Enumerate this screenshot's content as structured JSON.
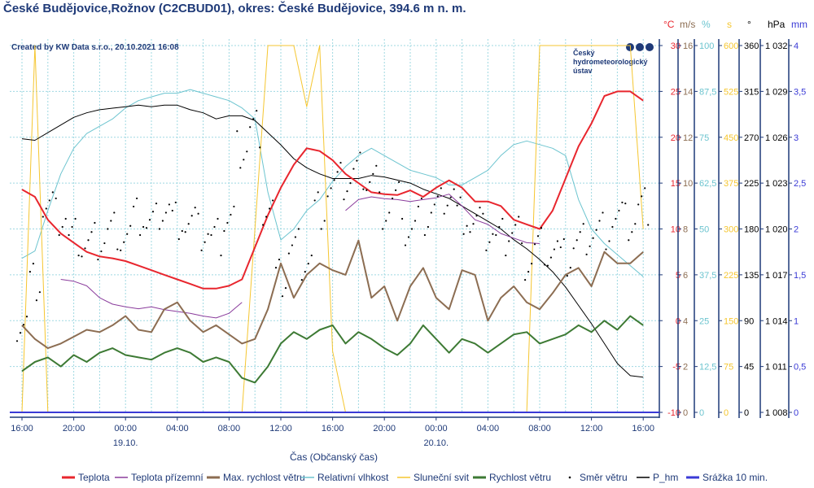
{
  "title": "České Budějovice,Rožnov (C2CBUD01), okres: České Budějovice, 394.6 m n. m.",
  "credit": "Created by KW Data s.r.o., 20.10.2021 16:08",
  "logo": {
    "lines": [
      "Český",
      "hydrometeorologický",
      "ústav"
    ]
  },
  "chart_data": {
    "type": "line",
    "title": "České Budějovice,Rožnov (C2CBUD01), okres: České Budějovice, 394.6 m n. m.",
    "xlabel": "Čas (Občanský čas)",
    "x_tick_labels": [
      "16:00",
      "20:00",
      "00:00",
      "04:00",
      "08:00",
      "12:00",
      "16:00",
      "20:00",
      "00:00",
      "04:00",
      "08:00",
      "12:00",
      "16:00"
    ],
    "date_labels": [
      {
        "label": "19.10.",
        "tick": 2
      },
      {
        "label": "20.10.",
        "tick": 8
      }
    ],
    "x_hours_from_start": "0..48 hourly, start 18.10. 16:00",
    "grid": true,
    "legend_position": "bottom",
    "axes": [
      {
        "id": "temp",
        "unit": "°C",
        "color": "#e8262e",
        "range": [
          -10,
          30
        ],
        "ticks": [
          "-10",
          "-5",
          "0",
          "5",
          "10",
          "15",
          "20",
          "25",
          "30"
        ]
      },
      {
        "id": "wind",
        "unit": "m/s",
        "color": "#8c6d52",
        "range": [
          0,
          16
        ],
        "ticks": [
          "0",
          "2",
          "4",
          "6",
          "8",
          "10",
          "12",
          "14",
          "16"
        ]
      },
      {
        "id": "hum",
        "unit": "%",
        "color": "#6cc4cf",
        "range": [
          0,
          100
        ],
        "ticks": [
          "0",
          "12,5",
          "25",
          "37,5",
          "50",
          "62,5",
          "75",
          "87,5",
          "100"
        ]
      },
      {
        "id": "sun",
        "unit": "s",
        "color": "#f5c630",
        "range": [
          0,
          600
        ],
        "ticks": [
          "0",
          "75",
          "150",
          "225",
          "300",
          "375",
          "450",
          "525",
          "600"
        ]
      },
      {
        "id": "dir",
        "unit": "°",
        "color": "#000000",
        "range": [
          0,
          360
        ],
        "ticks": [
          "0",
          "45",
          "90",
          "135",
          "180",
          "225",
          "270",
          "315",
          "360"
        ]
      },
      {
        "id": "press",
        "unit": "hPa",
        "color": "#000000",
        "range": [
          1008,
          1032
        ],
        "ticks": [
          "1 008",
          "1 011",
          "1 014",
          "1 017",
          "1 020",
          "1 023",
          "1 026",
          "1 029",
          "1 032"
        ]
      },
      {
        "id": "rain",
        "unit": "mm",
        "color": "#3a3ad6",
        "range": [
          0,
          4
        ],
        "ticks": [
          "0",
          "0,5",
          "1",
          "1,5",
          "2",
          "2,5",
          "3",
          "3,5",
          "4"
        ]
      }
    ],
    "series": [
      {
        "name": "Teplota",
        "axis": "temp",
        "color": "#e8262e",
        "style": "line",
        "width": 2,
        "values": [
          14.3,
          13.5,
          11,
          9.5,
          8.5,
          7.5,
          7,
          6.8,
          6.5,
          6,
          5.5,
          5,
          4.5,
          4,
          3.5,
          3.5,
          3.8,
          4.5,
          8,
          11.5,
          14.5,
          17,
          18.8,
          18.5,
          17.5,
          16,
          15,
          14,
          13.8,
          13.7,
          14.2,
          13.5,
          14.5,
          15.3,
          14.5,
          13,
          13,
          12.5,
          11,
          10.5,
          10,
          12,
          15.5,
          19,
          21.5,
          24.5,
          25,
          25,
          24
        ]
      },
      {
        "name": "Teplota přízemní",
        "axis": "temp",
        "color": "#8a3c9c",
        "style": "line",
        "width": 1,
        "values": [
          null,
          null,
          null,
          4.5,
          4.3,
          3.8,
          2.5,
          1.8,
          1.5,
          1.3,
          1.5,
          1.2,
          1.0,
          0.8,
          0.5,
          0.3,
          0.8,
          2.0,
          null,
          null,
          null,
          null,
          null,
          null,
          null,
          12,
          13.2,
          13.5,
          13.3,
          13.2,
          13,
          13.2,
          13.4,
          13.8,
          12.5,
          11,
          10.5,
          9.5,
          9,
          8.5,
          8.4,
          null,
          null,
          null,
          null,
          null,
          null,
          null,
          null
        ]
      },
      {
        "name": "Max. rychlost větru",
        "axis": "wind",
        "color": "#8c6d52",
        "style": "line",
        "width": 2,
        "values": [
          3.8,
          3.2,
          2.8,
          3,
          3.3,
          3.6,
          3.5,
          3.8,
          4.2,
          3.6,
          3.5,
          4.5,
          4.8,
          4,
          3.5,
          3.8,
          3.4,
          3,
          3.2,
          4.5,
          6.5,
          5,
          6,
          6.5,
          6.2,
          6,
          7.5,
          5,
          5.5,
          4,
          5.5,
          6.3,
          5,
          4.5,
          6.2,
          6,
          4,
          5,
          5.5,
          4.8,
          4.5,
          5.2,
          6,
          6.3,
          5.5,
          7,
          6.5,
          6.5,
          7
        ]
      },
      {
        "name": "Relativní vlhkost",
        "axis": "hum",
        "color": "#6cc4cf",
        "style": "line",
        "width": 1,
        "values": [
          42,
          44,
          55,
          65,
          72,
          76,
          78,
          80,
          83,
          85,
          86,
          87,
          87,
          88,
          87,
          86,
          85,
          83,
          80,
          60,
          47,
          50,
          55,
          58,
          63,
          67,
          70,
          72,
          70,
          68,
          66,
          65,
          64,
          62,
          62,
          64,
          66,
          70,
          73,
          74,
          73,
          72,
          70,
          58,
          50,
          46,
          43,
          40,
          37
        ]
      },
      {
        "name": "Sluneční svit",
        "axis": "sun",
        "color": "#f5c630",
        "style": "line",
        "width": 1,
        "values": [
          0,
          600,
          0,
          0,
          0,
          0,
          0,
          0,
          0,
          0,
          0,
          0,
          0,
          0,
          0,
          0,
          0,
          0,
          300,
          600,
          600,
          600,
          500,
          600,
          100,
          0,
          0,
          0,
          0,
          0,
          0,
          0,
          0,
          0,
          0,
          0,
          0,
          0,
          0,
          0,
          600,
          600,
          600,
          600,
          600,
          600,
          600,
          600,
          300
        ]
      },
      {
        "name": "Rychlost větru",
        "axis": "wind",
        "color": "#3d7a34",
        "style": "line",
        "width": 2,
        "values": [
          1.8,
          2.2,
          2.4,
          2,
          2.5,
          2.2,
          2.6,
          2.8,
          2.5,
          2.4,
          2.3,
          2.6,
          2.8,
          2.6,
          2.2,
          2.4,
          2.2,
          1.5,
          1.3,
          2,
          3,
          3.5,
          3.2,
          3.6,
          3.8,
          3,
          3.5,
          3.2,
          2.8,
          2.5,
          3,
          3.8,
          3.2,
          2.6,
          3.2,
          3,
          2.6,
          3,
          3.4,
          3.5,
          3,
          3.2,
          3.4,
          3.8,
          3.5,
          4,
          3.6,
          4.2,
          3.8
        ]
      },
      {
        "name": "Směr větru",
        "axis": "dir",
        "color": "#000000",
        "style": "dots",
        "values": [
          90,
          130,
          200,
          190,
          170,
          165,
          170,
          180,
          175,
          190,
          185,
          200,
          190,
          185,
          175,
          170,
          190,
          260,
          280,
          200,
          130,
          160,
          150,
          200,
          220,
          225,
          235,
          230,
          200,
          210,
          180,
          190,
          200,
          215,
          195,
          185,
          175,
          170,
          180,
          150,
          165,
          160,
          150,
          165,
          175,
          180,
          190,
          185,
          200
        ]
      },
      {
        "name": "P_hm",
        "axis": "press",
        "color": "#000000",
        "style": "line",
        "width": 1,
        "values": [
          1025.9,
          1025.8,
          1026.3,
          1026.8,
          1027.3,
          1027.6,
          1027.8,
          1027.9,
          1028,
          1028.1,
          1028,
          1028.1,
          1028.1,
          1027.8,
          1027.6,
          1027.2,
          1027.4,
          1027.4,
          1027.1,
          1026.3,
          1025.5,
          1024.6,
          1024,
          1023.6,
          1023.3,
          1023.3,
          1023.3,
          1023.5,
          1023.4,
          1023.2,
          1023,
          1022.6,
          1022.3,
          1022,
          1021.5,
          1021,
          1020.5,
          1020,
          1019.3,
          1018.7,
          1018,
          1017.2,
          1016.2,
          1015,
          1013.8,
          1012.5,
          1011.2,
          1010.4,
          1010.3
        ]
      },
      {
        "name": "Srážka 10 min.",
        "axis": "rain",
        "color": "#3a3ad6",
        "style": "line",
        "width": 2,
        "values": [
          0,
          0,
          0,
          0,
          0,
          0,
          0,
          0,
          0,
          0,
          0,
          0,
          0,
          0,
          0,
          0,
          0,
          0,
          0,
          0,
          0,
          0,
          0,
          0,
          0,
          0,
          0,
          0,
          0,
          0,
          0,
          0,
          0,
          0,
          0,
          0,
          0,
          0,
          0,
          0,
          0,
          0,
          0,
          0,
          0,
          0,
          0,
          0,
          0
        ]
      }
    ]
  }
}
